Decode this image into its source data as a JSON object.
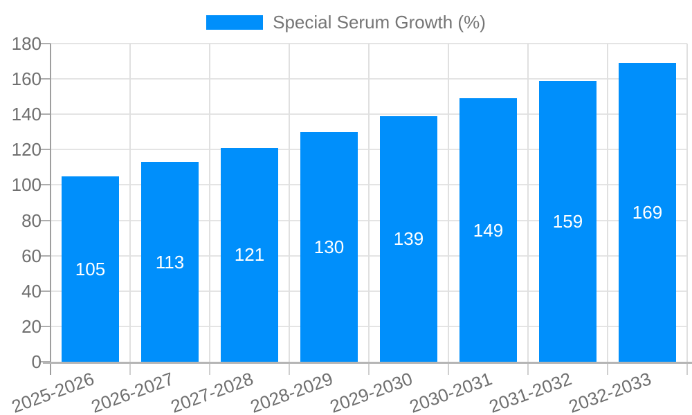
{
  "chart_data": {
    "type": "bar",
    "title": "",
    "legend": {
      "position": "top",
      "entries": [
        "Special Serum Growth (%)"
      ]
    },
    "categories": [
      "2025-2026",
      "2026-2027",
      "2027-2028",
      "2028-2029",
      "2029-2030",
      "2030-2031",
      "2031-2032",
      "2032-2033"
    ],
    "series": [
      {
        "name": "Special Serum Growth (%)",
        "color": "#008FFB",
        "values": [
          105,
          113,
          121,
          130,
          139,
          149,
          159,
          169
        ]
      }
    ],
    "xlabel": "",
    "ylabel": "",
    "ylim": [
      0,
      180
    ],
    "yticks": [
      0,
      20,
      40,
      60,
      80,
      100,
      120,
      140,
      160,
      180
    ],
    "grid": "on",
    "x_tick_label_rotation_deg": -20,
    "bar_value_labels": {
      "visible": true,
      "position": "inside-center",
      "color": "#FFFFFF"
    }
  },
  "colors": {
    "background": "#FFFFFF",
    "bar_fill": "#008FFB",
    "axis_label_text": "#6F6F6F",
    "legend_text": "#757575",
    "h_grid_line": "#E4E4E4",
    "v_grid_line": "#E0E0E0",
    "y_axis_line": "#9E9E9E",
    "x_axis_line": "#B5B5B5",
    "y_tick_mark": "#ADADAD",
    "x_tick_mark": "#CFCFCF",
    "bar_label_text": "#FFFFFF"
  }
}
